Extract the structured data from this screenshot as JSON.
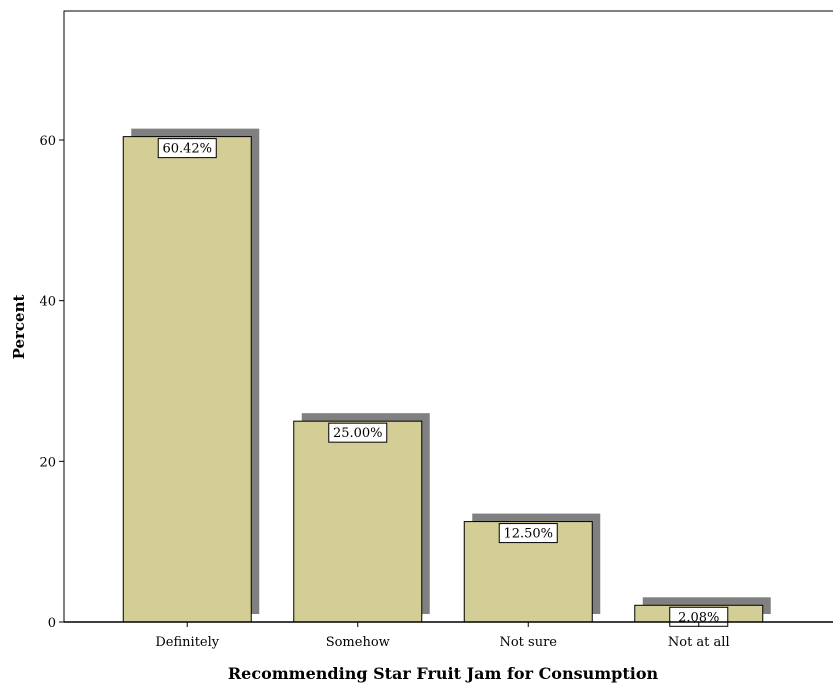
{
  "chart_data": {
    "type": "bar",
    "categories": [
      "Definitely",
      "Somehow",
      "Not sure",
      "Not at all"
    ],
    "values": [
      60.42,
      25.0,
      12.5,
      2.08
    ],
    "data_labels": [
      "60.42%",
      "25.00%",
      "12.50%",
      "2.08%"
    ],
    "title": "",
    "xlabel": "Recommending Star Fruit Jam for Consumption",
    "ylabel": "Percent",
    "ylim": [
      0,
      75
    ],
    "yticks": [
      0,
      20,
      40,
      60
    ],
    "grid": false,
    "legend": "none",
    "colors": {
      "bar_fill": "#d3cd96",
      "bar_stroke": "#000000",
      "shadow": "#808080",
      "label_box": "#ffffff",
      "axis": "#000000"
    }
  }
}
